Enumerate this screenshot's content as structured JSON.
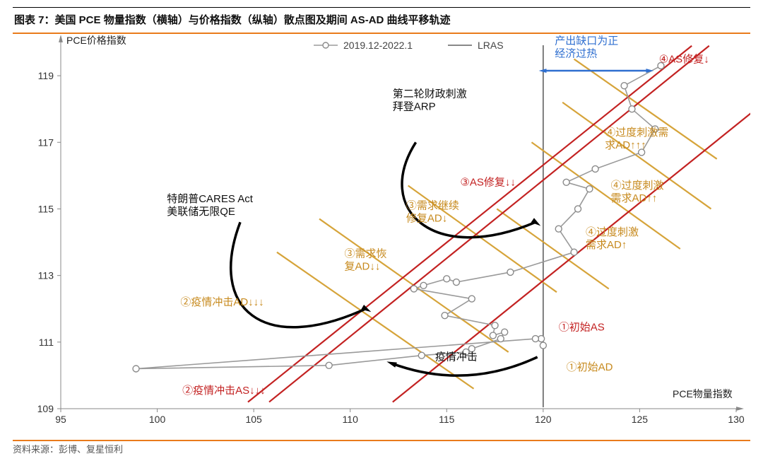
{
  "title": "图表 7：美国 PCE 物量指数（横轴）与价格指数（纵轴）散点图及期间 AS-AD 曲线平移轨迹",
  "source": "资料来源：彭博、复星恒利",
  "chart": {
    "type": "scatter-line",
    "xlabel": "PCE物量指数",
    "ylabel": "PCE价格指数",
    "xlim": [
      95,
      130
    ],
    "ylim": [
      109,
      120
    ],
    "xtick_step": 5,
    "ytick_step": 2,
    "ymin_tick": 109,
    "background_color": "#ffffff",
    "axis_color": "#888888",
    "tick_font_size": 14,
    "label_font_size": 15,
    "data_line_color": "#9a9a9a",
    "marker_style": "circle",
    "marker_size": 4.5,
    "marker_fill": "#ffffff",
    "marker_stroke": "#8a8a8a",
    "lras_x": 120,
    "lras_color": "#606060",
    "legend": {
      "series_label": "2019.12-2022.1",
      "lras_label": "LRAS",
      "y": 14
    },
    "series": [
      [
        120.0,
        110.9
      ],
      [
        119.9,
        111.1
      ],
      [
        119.6,
        111.1
      ],
      [
        98.9,
        110.2
      ],
      [
        108.9,
        110.3
      ],
      [
        113.7,
        110.6
      ],
      [
        116.0,
        110.7
      ],
      [
        116.3,
        110.8
      ],
      [
        117.8,
        111.1
      ],
      [
        118.0,
        111.3
      ],
      [
        117.4,
        111.2
      ],
      [
        117.5,
        111.5
      ],
      [
        114.9,
        111.8
      ],
      [
        116.3,
        112.3
      ],
      [
        113.3,
        112.6
      ],
      [
        113.8,
        112.7
      ],
      [
        115.0,
        112.9
      ],
      [
        115.5,
        112.8
      ],
      [
        118.3,
        113.1
      ],
      [
        121.6,
        113.7
      ],
      [
        120.8,
        114.4
      ],
      [
        121.8,
        115.0
      ],
      [
        122.4,
        115.6
      ],
      [
        121.2,
        115.8
      ],
      [
        122.7,
        116.2
      ],
      [
        125.1,
        116.7
      ],
      [
        125.8,
        117.4
      ],
      [
        124.6,
        118.0
      ],
      [
        124.2,
        118.7
      ],
      [
        126.1,
        119.3
      ]
    ],
    "supply_demand_lines": {
      "ad_color": "#d6a43a",
      "as_color": "#c32222",
      "width": 2.2,
      "ad": [
        [
          [
            106.2,
            113.7
          ],
          [
            116.4,
            109.6
          ]
        ],
        [
          [
            108.4,
            114.7
          ],
          [
            118.2,
            110.7
          ]
        ],
        [
          [
            113.0,
            115.7
          ],
          [
            120.7,
            112.5
          ]
        ],
        [
          [
            117.6,
            115.0
          ],
          [
            123.4,
            112.6
          ]
        ],
        [
          [
            119.4,
            117.0
          ],
          [
            127.1,
            113.8
          ]
        ],
        [
          [
            121.0,
            118.2
          ],
          [
            128.7,
            115.0
          ]
        ],
        [
          [
            121.6,
            119.5
          ],
          [
            129.0,
            116.5
          ]
        ]
      ],
      "as": [
        [
          [
            104.7,
            109.2
          ],
          [
            127.7,
            119.9
          ]
        ],
        [
          [
            105.8,
            109.2
          ],
          [
            128.6,
            119.9
          ]
        ],
        [
          [
            112.2,
            109.2
          ],
          [
            133.6,
            119.2
          ]
        ]
      ]
    }
  },
  "annotations": {
    "red": {
      "a2": "②疫情冲击AS↓↓↓",
      "a3": "③AS修复↓↓",
      "a4": "④AS修复↓",
      "as1": "①初始AS"
    },
    "gold": {
      "ad2": "②疫情冲击AD↓↓↓",
      "ad3a": "③需求恢复AD↓↓",
      "ad3b": "③需求继续修复AD↓",
      "ad1": "①初始AD",
      "ad4a": "④过度刺激需求AD↑",
      "ad4b": "④过度刺激需求AD↑↑",
      "ad4c": "④过度刺激需求AD↑↑↑"
    },
    "black": {
      "shock": "疫情冲击",
      "cares_l1": "特朗普CARES Act",
      "cares_l2": "美联储无限QE",
      "arp_l1": "第二轮财政刺激",
      "arp_l2": "拜登ARP"
    },
    "blue": {
      "gap_l1": "产出缺口为正",
      "gap_l2": "经济过热"
    }
  }
}
